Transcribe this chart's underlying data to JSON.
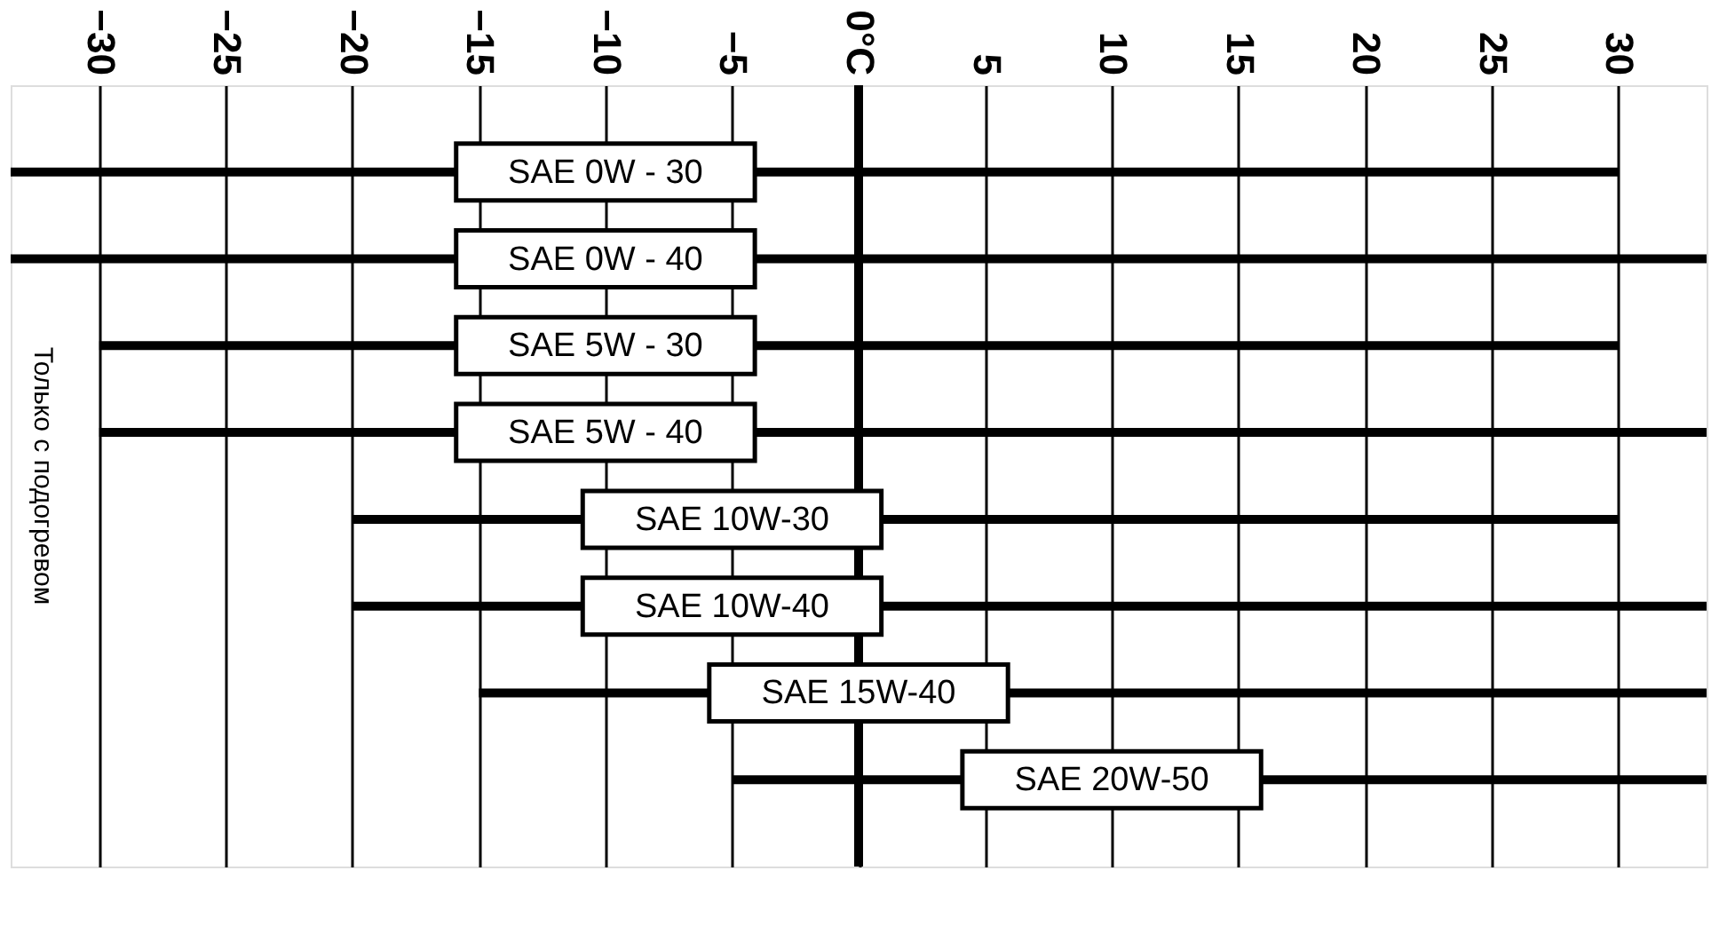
{
  "chart_data": {
    "type": "bar",
    "orientation": "horizontal",
    "categories": [
      "SAE 0W - 30",
      "SAE 0W - 40",
      "SAE 5W - 30",
      "SAE 5W - 40",
      "SAE 10W-30",
      "SAE 10W-40",
      "SAE 15W-40",
      "SAE 20W-50"
    ],
    "base": [
      -33.5,
      -33.5,
      -30,
      -30,
      -20,
      -20,
      -15,
      -5
    ],
    "values": [
      63.5,
      67,
      60,
      63.5,
      50,
      53.5,
      48.5,
      38.5
    ],
    "color": "#000000",
    "xlim": [
      -33.5,
      33.5
    ],
    "xticks": [
      -30,
      -25,
      -20,
      -15,
      -10,
      -5,
      {
        "value": 0,
        "label": "0°C"
      },
      5,
      10,
      15,
      20,
      25,
      30
    ],
    "grid": "x",
    "ref_lines": [
      {
        "axis": "x",
        "value": 0,
        "color": "#000000"
      }
    ],
    "annotations": [
      "Только с подогревом"
    ]
  }
}
